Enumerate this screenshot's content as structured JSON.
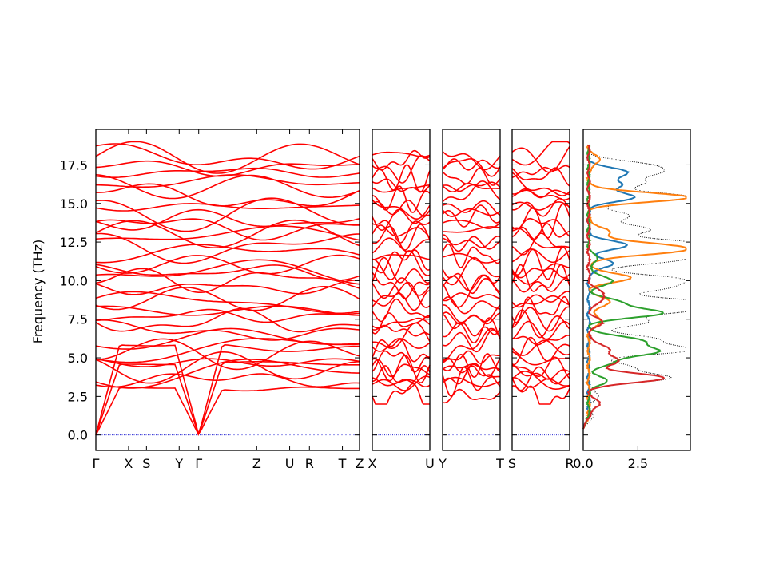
{
  "figure": {
    "ylabel": "Frequency (THz)"
  },
  "chart_data": [
    {
      "type": "line",
      "name": "phonon-band-structure",
      "ylabel": "Frequency (THz)",
      "ylim": [
        -1.0,
        19.8
      ],
      "yticks": [
        "0.0",
        "2.5",
        "5.0",
        "7.5",
        "10.0",
        "12.5",
        "15.0",
        "17.5"
      ],
      "panels": [
        {
          "xlim": [
            0,
            1
          ],
          "xticks": [
            {
              "x": 0.0,
              "label": "Γ"
            },
            {
              "x": 0.124,
              "label": "X"
            },
            {
              "x": 0.192,
              "label": "S"
            },
            {
              "x": 0.316,
              "label": "Y"
            },
            {
              "x": 0.39,
              "label": "Γ"
            },
            {
              "x": 0.61,
              "label": "Z"
            },
            {
              "x": 0.735,
              "label": "U"
            },
            {
              "x": 0.81,
              "label": "R"
            },
            {
              "x": 0.935,
              "label": "T"
            },
            {
              "x": 1.0,
              "label": "Z"
            }
          ],
          "gamma_points": [
            0.0,
            0.39
          ]
        },
        {
          "xlim": [
            0,
            1
          ],
          "xticks": [
            {
              "x": 0.0,
              "label": "X"
            },
            {
              "x": 1.0,
              "label": "U"
            }
          ]
        },
        {
          "xlim": [
            0,
            1
          ],
          "xticks": [
            {
              "x": 0.0,
              "label": "Y"
            },
            {
              "x": 1.0,
              "label": "T"
            }
          ]
        },
        {
          "xlim": [
            0,
            1
          ],
          "xticks": [
            {
              "x": 0.0,
              "label": "S"
            },
            {
              "x": 1.0,
              "label": "R"
            }
          ]
        }
      ],
      "band_color": "#ff0000",
      "zero_line_color": "#0000cc",
      "band_count": 36
    },
    {
      "type": "line",
      "name": "partial-dos",
      "xlim": [
        0,
        4.9
      ],
      "ylim": [
        -1.0,
        19.8
      ],
      "xticks": [
        "0.0",
        "2.5"
      ],
      "series": [
        {
          "color": "#000000",
          "style": "dotted",
          "peaks": [
            [
              1.0,
              0.3
            ],
            [
              2.5,
              0.4
            ],
            [
              3.7,
              3.6
            ],
            [
              4.4,
              1.8
            ],
            [
              5.5,
              4.5
            ],
            [
              6.2,
              3.0
            ],
            [
              7.3,
              2.6
            ],
            [
              8.1,
              4.0
            ],
            [
              8.6,
              4.6
            ],
            [
              9.5,
              3.0
            ],
            [
              10.1,
              4.0
            ],
            [
              11.3,
              3.5
            ],
            [
              11.9,
              4.5
            ],
            [
              12.4,
              4.4
            ],
            [
              13.3,
              2.8
            ],
            [
              14.2,
              1.9
            ],
            [
              15.4,
              4.6
            ],
            [
              16.3,
              2.4
            ],
            [
              17.0,
              2.6
            ],
            [
              17.5,
              2.3
            ]
          ]
        },
        {
          "color": "#1f77b4",
          "style": "solid",
          "peaks": [
            [
              11.1,
              1.1
            ],
            [
              12.3,
              1.7
            ],
            [
              15.4,
              2.0
            ],
            [
              16.2,
              1.4
            ],
            [
              17.0,
              1.8
            ]
          ]
        },
        {
          "color": "#ff7f0e",
          "style": "solid",
          "peaks": [
            [
              7.4,
              0.6
            ],
            [
              8.6,
              1.0
            ],
            [
              10.2,
              1.9
            ],
            [
              11.9,
              3.1
            ],
            [
              12.3,
              2.5
            ],
            [
              13.2,
              0.9
            ],
            [
              15.4,
              4.6
            ],
            [
              17.8,
              0.5
            ]
          ]
        },
        {
          "color": "#2ca02c",
          "style": "solid",
          "peaks": [
            [
              3.5,
              0.8
            ],
            [
              4.7,
              0.9
            ],
            [
              5.4,
              3.0
            ],
            [
              6.1,
              2.4
            ],
            [
              7.9,
              3.3
            ],
            [
              8.6,
              1.3
            ],
            [
              10.0,
              1.1
            ],
            [
              11.4,
              0.4
            ]
          ]
        },
        {
          "color": "#d62728",
          "style": "solid",
          "peaks": [
            [
              2.0,
              0.5
            ],
            [
              3.7,
              3.5
            ],
            [
              4.8,
              1.4
            ],
            [
              5.6,
              0.9
            ],
            [
              7.3,
              0.6
            ],
            [
              8.8,
              0.6
            ],
            [
              9.3,
              0.4
            ]
          ]
        }
      ]
    }
  ]
}
